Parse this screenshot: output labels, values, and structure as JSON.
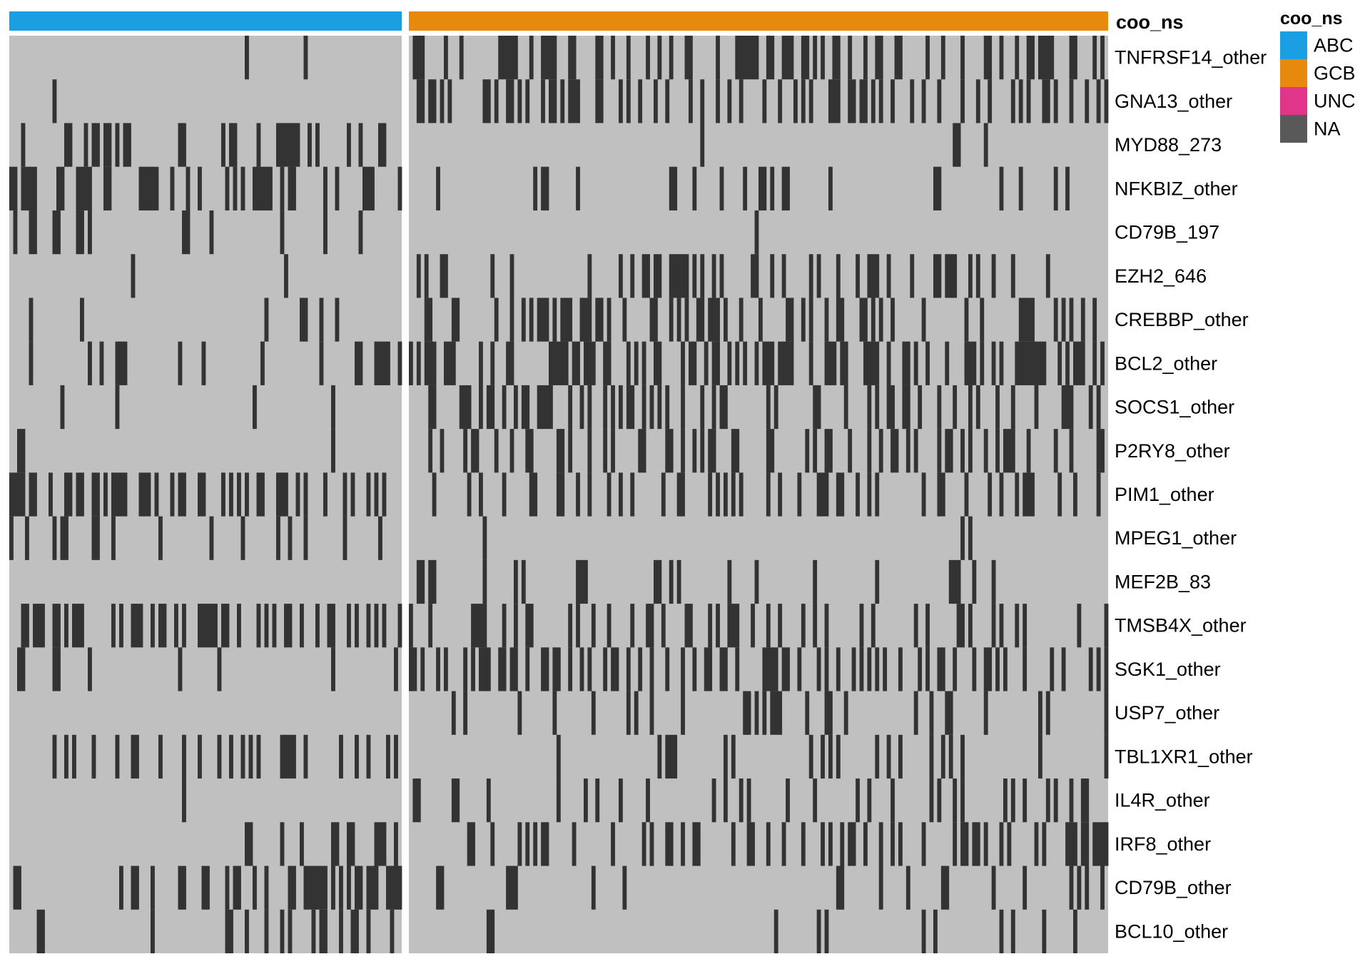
{
  "chart_data": {
    "type": "heatmap",
    "annotation": {
      "name": "coo_ns",
      "groups": [
        {
          "label": "ABC",
          "n_samples": 100
        },
        {
          "label": "GCB",
          "n_samples": 180
        }
      ]
    },
    "value_colors": {
      "mutated": "#333333",
      "wildtype": "#c0c0c0"
    },
    "rows": [
      {
        "gene": "TNFRSF14_other",
        "abc": [
          60,
          75
        ],
        "gcb": [
          1,
          2,
          3,
          9,
          13,
          23,
          24,
          25,
          26,
          27,
          31,
          34,
          35,
          36,
          37,
          41,
          42,
          48,
          49,
          52,
          56,
          61,
          64,
          67,
          71,
          72,
          79,
          84,
          85,
          86,
          87,
          88,
          89,
          92,
          93,
          96,
          97,
          98,
          101,
          102,
          104,
          106,
          109,
          110,
          113,
          117,
          120,
          121,
          125,
          126,
          133,
          137,
          142,
          148,
          149,
          152,
          156,
          159,
          160,
          162,
          163,
          164,
          165,
          170,
          171,
          176,
          178
        ]
      },
      {
        "gene": "GNA13_other",
        "abc": [
          11
        ],
        "gcb": [
          2,
          3,
          5,
          6,
          8,
          10,
          19,
          20,
          22,
          25,
          26,
          28,
          30,
          34,
          36,
          37,
          39,
          41,
          42,
          43,
          48,
          49,
          54,
          56,
          59,
          63,
          66,
          72,
          75,
          79,
          82,
          85,
          91,
          95,
          99,
          101,
          103,
          108,
          109,
          110,
          113,
          114,
          116,
          117,
          119,
          121,
          124,
          129,
          132,
          136,
          142,
          146,
          149,
          155,
          157,
          159,
          163,
          164,
          166,
          170,
          174,
          177,
          179
        ]
      },
      {
        "gene": "MYD88_273",
        "abc": [
          3,
          14,
          15,
          19,
          21,
          22,
          24,
          25,
          27,
          29,
          30,
          43,
          44,
          54,
          56,
          57,
          63,
          68,
          69,
          70,
          71,
          72,
          73,
          76,
          78,
          86,
          89,
          94,
          95
        ],
        "gcb": [
          75,
          140,
          141,
          148
        ]
      },
      {
        "gene": "NFKBIZ_other",
        "abc": [
          0,
          1,
          3,
          4,
          5,
          6,
          12,
          13,
          17,
          18,
          19,
          20,
          24,
          25,
          33,
          34,
          35,
          36,
          37,
          41,
          45,
          48,
          55,
          57,
          59,
          62,
          63,
          64,
          65,
          66,
          69,
          71,
          72,
          80,
          83,
          90,
          91,
          92,
          99
        ],
        "gcb": [
          7,
          32,
          34,
          35,
          43,
          67,
          68,
          73,
          80,
          86,
          90,
          91,
          93,
          96,
          97,
          108,
          135,
          136,
          152,
          157,
          166,
          169
        ]
      },
      {
        "gene": "CD79B_197",
        "abc": [
          1,
          5,
          6,
          11,
          12,
          17,
          18,
          20,
          44,
          45,
          51,
          69,
          80,
          89
        ],
        "gcb": [
          89
        ]
      },
      {
        "gene": "EZH2_646",
        "abc": [
          31,
          70
        ],
        "gcb": [
          2,
          4,
          8,
          9,
          21,
          26,
          46,
          54,
          57,
          60,
          61,
          63,
          64,
          67,
          68,
          69,
          70,
          71,
          73,
          75,
          78,
          80,
          88,
          89,
          93,
          96,
          103,
          105,
          110,
          115,
          118,
          119,
          120,
          123,
          129,
          135,
          136,
          138,
          139,
          140,
          144,
          146,
          150,
          155,
          164
        ]
      },
      {
        "gene": "CREBBP_other",
        "abc": [
          5,
          18,
          65,
          74,
          75,
          79,
          83
        ],
        "gcb": [
          4,
          5,
          11,
          12,
          22,
          26,
          29,
          31,
          33,
          34,
          35,
          37,
          39,
          40,
          41,
          44,
          45,
          46,
          48,
          49,
          51,
          55,
          62,
          63,
          67,
          69,
          71,
          74,
          75,
          77,
          78,
          79,
          81,
          85,
          90,
          97,
          98,
          101,
          103,
          107,
          110,
          111,
          116,
          117,
          119,
          121,
          124,
          132,
          143,
          147,
          157,
          158,
          159,
          160,
          166,
          168,
          170,
          173,
          176
        ]
      },
      {
        "gene": "BCL2_other",
        "abc": [
          5,
          20,
          23,
          27,
          28,
          29,
          43,
          49,
          64,
          79,
          88,
          89,
          93,
          94,
          95,
          96,
          99
        ],
        "gcb": [
          0,
          2,
          4,
          5,
          6,
          9,
          10,
          11,
          18,
          21,
          25,
          26,
          36,
          37,
          38,
          39,
          40,
          42,
          43,
          45,
          46,
          47,
          50,
          51,
          56,
          58,
          60,
          63,
          64,
          70,
          72,
          73,
          76,
          78,
          79,
          82,
          84,
          86,
          89,
          91,
          92,
          93,
          95,
          96,
          97,
          98,
          103,
          107,
          108,
          109,
          111,
          112,
          117,
          118,
          119,
          120,
          123,
          127,
          128,
          130,
          133,
          138,
          143,
          144,
          145,
          147,
          150,
          152,
          156,
          157,
          158,
          159,
          160,
          161,
          162,
          163,
          167,
          169,
          171,
          172,
          173,
          176,
          178
        ]
      },
      {
        "gene": "SOCS1_other",
        "abc": [
          13,
          27,
          62,
          82
        ],
        "gcb": [
          5,
          6,
          13,
          14,
          15,
          18,
          20,
          21,
          24,
          27,
          29,
          30,
          33,
          34,
          35,
          36,
          41,
          44,
          46,
          50,
          52,
          54,
          56,
          57,
          60,
          62,
          64,
          66,
          70,
          75,
          78,
          80,
          81,
          92,
          94,
          104,
          105,
          112,
          118,
          120,
          123,
          124,
          127,
          128,
          131,
          136,
          140,
          144,
          146,
          151,
          155,
          161,
          168,
          169,
          170,
          175,
          177
        ]
      },
      {
        "gene": "P2RY8_other",
        "abc": [
          2,
          3,
          82
        ],
        "gcb": [
          5,
          8,
          14,
          16,
          17,
          22,
          26,
          30,
          31,
          38,
          39,
          41,
          46,
          50,
          52,
          59,
          60,
          66,
          67,
          70,
          73,
          75,
          77,
          78,
          83,
          84,
          92,
          93,
          102,
          104,
          107,
          108,
          113,
          118,
          121,
          124,
          125,
          128,
          130,
          136,
          138,
          139,
          142,
          144,
          148,
          151,
          153,
          154,
          155,
          159,
          166,
          170,
          177,
          178
        ]
      },
      {
        "gene": "PIM1_other",
        "abc": [
          0,
          1,
          2,
          3,
          5,
          6,
          10,
          14,
          15,
          17,
          18,
          21,
          22,
          24,
          26,
          27,
          28,
          29,
          33,
          34,
          35,
          37,
          41,
          43,
          44,
          48,
          49,
          54,
          56,
          58,
          60,
          63,
          64,
          68,
          69,
          70,
          73,
          75,
          80,
          85,
          87,
          91,
          93,
          95
        ],
        "gcb": [
          6,
          15,
          18,
          24,
          31,
          32,
          38,
          39,
          43,
          46,
          51,
          54,
          57,
          65,
          69,
          70,
          77,
          79,
          81,
          83,
          85,
          92,
          95,
          100,
          105,
          106,
          107,
          110,
          111,
          115,
          118,
          120,
          132,
          136,
          137,
          143,
          149,
          152,
          156,
          158,
          159,
          160,
          167,
          171,
          177
        ]
      },
      {
        "gene": "MPEG1_other",
        "abc": [
          0,
          4,
          11,
          13,
          14,
          21,
          22,
          26,
          38,
          51,
          59,
          68,
          71,
          75,
          85,
          94
        ],
        "gcb": [
          19,
          142,
          144
        ]
      },
      {
        "gene": "MEF2B_83",
        "abc": [],
        "gcb": [
          2,
          3,
          5,
          6,
          19,
          27,
          29,
          43,
          44,
          45,
          63,
          64,
          67,
          69,
          82,
          89,
          104,
          120,
          139,
          140,
          141,
          145,
          150
        ]
      },
      {
        "gene": "TMSB4X_other",
        "abc": [
          3,
          4,
          6,
          7,
          8,
          11,
          12,
          14,
          16,
          17,
          18,
          26,
          28,
          31,
          32,
          33,
          36,
          38,
          39,
          42,
          44,
          48,
          49,
          50,
          51,
          52,
          54,
          55,
          58,
          63,
          65,
          67,
          70,
          71,
          74,
          78,
          81,
          82,
          86,
          88,
          91,
          93,
          95,
          99
        ],
        "gcb": [
          0,
          5,
          16,
          17,
          18,
          19,
          24,
          27,
          30,
          31,
          41,
          43,
          47,
          51,
          57,
          61,
          62,
          65,
          71,
          72,
          77,
          79,
          82,
          83,
          84,
          88,
          92,
          95,
          101,
          104,
          107,
          116,
          119,
          130,
          133,
          141,
          142,
          144,
          150,
          152,
          156,
          158,
          172,
          179
        ]
      },
      {
        "gene": "SGK1_other",
        "abc": [
          2,
          3,
          11,
          12,
          20,
          43,
          53,
          82,
          98
        ],
        "gcb": [
          0,
          1,
          3,
          7,
          9,
          14,
          16,
          18,
          19,
          20,
          23,
          24,
          26,
          27,
          30,
          34,
          35,
          37,
          38,
          41,
          44,
          46,
          50,
          52,
          53,
          56,
          59,
          62,
          66,
          70,
          73,
          76,
          77,
          80,
          81,
          84,
          91,
          92,
          93,
          94,
          96,
          97,
          100,
          105,
          107,
          110,
          114,
          116,
          118,
          120,
          122,
          126,
          131,
          133,
          136,
          137,
          140,
          145,
          148,
          149,
          151,
          153,
          158,
          165,
          168,
          175,
          177,
          179
        ]
      },
      {
        "gene": "USP7_other",
        "abc": [],
        "gcb": [
          11,
          14,
          28,
          37,
          47,
          56,
          58,
          62,
          70,
          86,
          87,
          89,
          91,
          93,
          94,
          95,
          102,
          107,
          108,
          112,
          130,
          134,
          138,
          139,
          148,
          162,
          164,
          179
        ]
      },
      {
        "gene": "TBL1XR1_other",
        "abc": [
          11,
          14,
          16,
          21,
          27,
          31,
          32,
          38,
          44,
          48,
          53,
          56,
          59,
          61,
          63,
          69,
          70,
          71,
          72,
          75,
          84,
          88,
          91,
          96,
          98
        ],
        "gcb": [
          38,
          64,
          66,
          67,
          68,
          81,
          83,
          103,
          106,
          108,
          110,
          120,
          123,
          126,
          134,
          137,
          139,
          142,
          162,
          179
        ]
      },
      {
        "gene": "IL4R_other",
        "abc": [
          44
        ],
        "gcb": [
          1,
          2,
          11,
          12,
          20,
          38,
          45,
          48,
          54,
          61,
          78,
          81,
          85,
          87,
          97,
          104,
          115,
          118,
          124,
          134,
          136,
          140,
          142,
          153,
          155,
          158,
          164,
          166,
          170,
          173,
          174
        ]
      },
      {
        "gene": "IRF8_other",
        "abc": [
          60,
          61,
          69,
          74,
          82,
          83,
          86,
          87,
          93,
          94,
          95,
          98
        ],
        "gcb": [
          15,
          16,
          21,
          28,
          30,
          32,
          34,
          35,
          42,
          52,
          60,
          62,
          66,
          67,
          70,
          73,
          74,
          83,
          87,
          88,
          92,
          96,
          101,
          106,
          108,
          111,
          113,
          114,
          117,
          121,
          124,
          126,
          132,
          140,
          142,
          143,
          145,
          146,
          148,
          152,
          154,
          161,
          163,
          169,
          170,
          171,
          173,
          174,
          176,
          177,
          178,
          179
        ]
      },
      {
        "gene": "CD79B_other",
        "abc": [
          1,
          2,
          28,
          31,
          32,
          36,
          43,
          44,
          49,
          50,
          55,
          57,
          58,
          62,
          65,
          71,
          72,
          75,
          76,
          77,
          78,
          79,
          80,
          82,
          84,
          86,
          88,
          89,
          91,
          92,
          93,
          96,
          97,
          98,
          99
        ],
        "gcb": [
          7,
          8,
          25,
          26,
          27,
          47,
          55,
          110,
          111,
          121,
          128,
          137,
          138,
          150,
          158,
          170,
          172,
          174,
          178
        ]
      },
      {
        "gene": "BCL10_other",
        "abc": [
          7,
          8,
          36,
          55,
          56,
          60,
          65,
          69,
          71,
          77,
          79,
          80,
          84,
          87,
          88,
          91,
          97
        ],
        "gcb": [
          20,
          21,
          94,
          105,
          107,
          132,
          135,
          152,
          155,
          163,
          171
        ]
      }
    ],
    "legend": {
      "title": "coo_ns",
      "items": [
        {
          "label": "ABC",
          "color": "#1b9fe3"
        },
        {
          "label": "GCB",
          "color": "#e6890c"
        },
        {
          "label": "UNC",
          "color": "#e0358a"
        },
        {
          "label": "NA",
          "color": "#595959"
        }
      ]
    }
  }
}
